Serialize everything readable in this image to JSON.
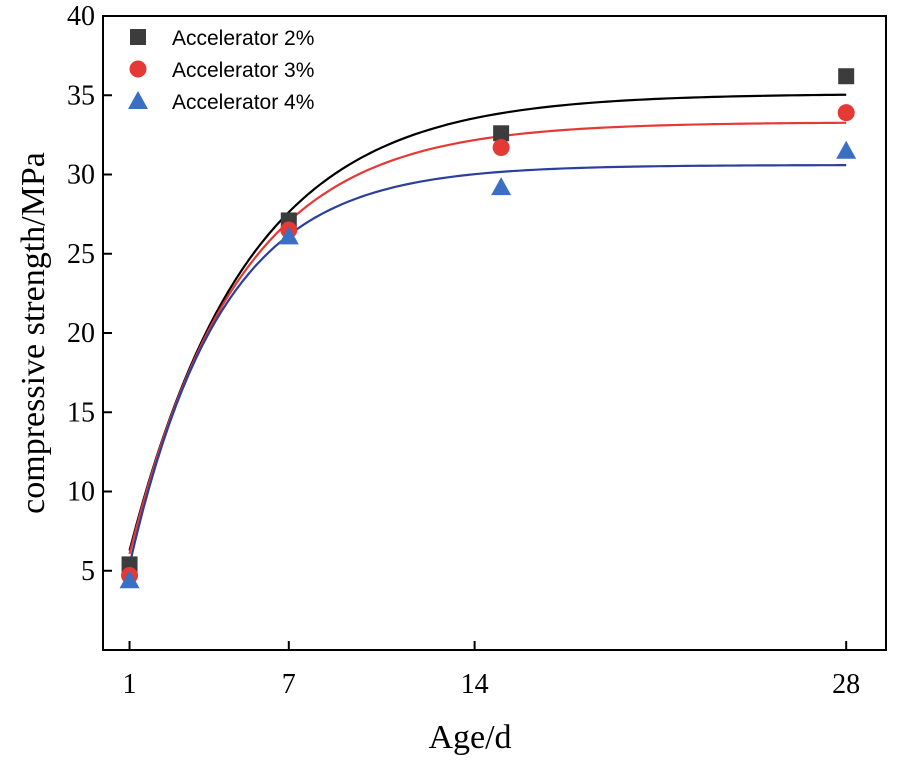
{
  "chart_data": {
    "type": "scatter",
    "title": "",
    "xlabel": "Age/d",
    "ylabel": "compressive strength/MPa",
    "xlim": [
      0,
      29.5
    ],
    "ylim": [
      0,
      40
    ],
    "x_ticks": [
      1,
      7,
      14,
      28
    ],
    "x_tick_labels": [
      "1",
      "7",
      "14",
      "28"
    ],
    "y_ticks": [
      5,
      10,
      15,
      20,
      25,
      30,
      35,
      40
    ],
    "y_tick_labels": [
      "5",
      "10",
      "15",
      "20",
      "25",
      "30",
      "35",
      "40"
    ],
    "legend_position": "top-left",
    "grid": false,
    "series": [
      {
        "name": "Accelerator 2%",
        "marker": "square",
        "marker_color": "#3c3c3c",
        "fit_color": "#000000",
        "x": [
          1,
          7,
          15,
          28
        ],
        "y": [
          5.4,
          27.1,
          32.6,
          36.2
        ],
        "fit": {
          "model": "y = a - b*exp(-k*x)",
          "a": 35.1,
          "b": 36.1,
          "k": 0.225
        }
      },
      {
        "name": "Accelerator 3%",
        "marker": "circle",
        "marker_color": "#e53935",
        "fit_color": "#e53935",
        "x": [
          1,
          7,
          15,
          28
        ],
        "y": [
          4.7,
          26.5,
          31.7,
          33.9
        ],
        "fit": {
          "model": "y = a - b*exp(-k*x)",
          "a": 33.3,
          "b": 34.8,
          "k": 0.245
        }
      },
      {
        "name": "Accelerator 4%",
        "marker": "triangle",
        "marker_color": "#3a6fc4",
        "fit_color": "#2a3f9e",
        "x": [
          1,
          7,
          15,
          28
        ],
        "y": [
          4.4,
          26.1,
          29.2,
          31.5
        ],
        "fit": {
          "model": "y = a - b*exp(-k*x)",
          "a": 30.6,
          "b": 33.7,
          "k": 0.29
        }
      }
    ]
  }
}
